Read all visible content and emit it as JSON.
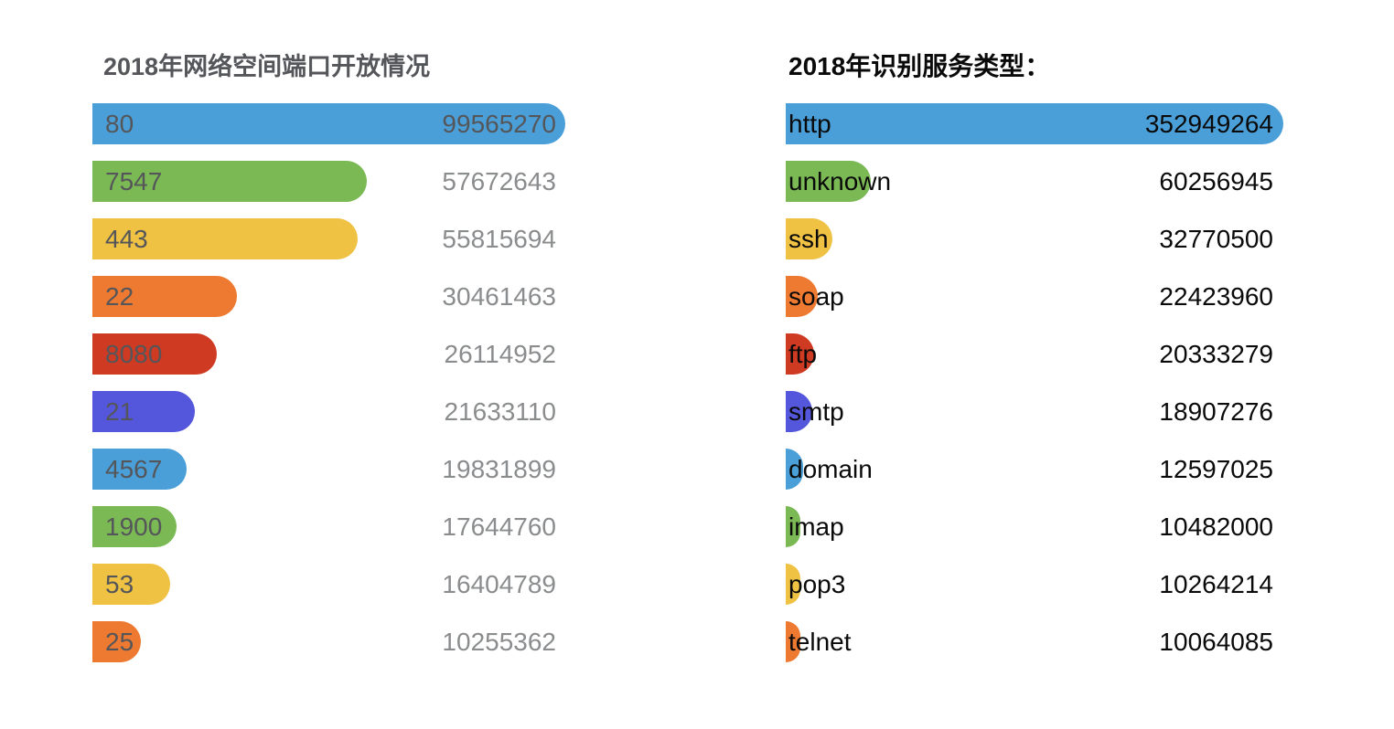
{
  "page": {
    "background": "#ffffff"
  },
  "palette": {
    "blue": "#4a9fd8",
    "green": "#7bb955",
    "yellow": "#efc244",
    "orange": "#ee7a31",
    "red": "#cf3a23",
    "indigo": "#5456db"
  },
  "chart_data": [
    {
      "type": "bar",
      "orientation": "horizontal",
      "title": "2018年网络空间端口开放情况",
      "title_color": "#55565a",
      "categories": [
        "80",
        "7547",
        "443",
        "22",
        "8080",
        "21",
        "4567",
        "1900",
        "53",
        "25"
      ],
      "values": [
        99565270,
        57672643,
        55815694,
        30461463,
        26114952,
        21633110,
        19831899,
        17644760,
        16404789,
        10255362
      ],
      "value_labels": [
        "99565270",
        "57672643",
        "55815694",
        "30461463",
        "26114952",
        "21633110",
        "19831899",
        "17644760",
        "16404789",
        "10255362"
      ],
      "bar_colors": [
        "#4a9fd8",
        "#7bb955",
        "#efc244",
        "#ee7a31",
        "#cf3a23",
        "#5456db",
        "#4a9fd8",
        "#7bb955",
        "#efc244",
        "#ee7a31"
      ],
      "label_color": "#55565a",
      "value_color": "#8a8c8e",
      "value_color_in_bar": "#55565a",
      "xlim": [
        0,
        99565270
      ],
      "grid": false,
      "legend": "none"
    },
    {
      "type": "bar",
      "orientation": "horizontal",
      "title": "2018年识别服务类型：",
      "title_color": "#0a0a0a",
      "categories": [
        "http",
        "unknown",
        "ssh",
        "soap",
        "ftp",
        "smtp",
        "domain",
        "imap",
        "pop3",
        "telnet"
      ],
      "values": [
        352949264,
        60256945,
        32770500,
        22423960,
        20333279,
        18907276,
        12597025,
        10482000,
        10264214,
        10064085
      ],
      "value_labels": [
        "352949264",
        "60256945",
        "32770500",
        "22423960",
        "20333279",
        "18907276",
        "12597025",
        "10482000",
        "10264214",
        "10064085"
      ],
      "bar_colors": [
        "#4a9fd8",
        "#7bb955",
        "#efc244",
        "#ee7a31",
        "#cf3a23",
        "#5456db",
        "#4a9fd8",
        "#7bb955",
        "#efc244",
        "#ee7a31"
      ],
      "label_color": "#0a0a0a",
      "value_color": "#0a0a0a",
      "value_color_in_bar": "#0a0a0a",
      "xlim": [
        0,
        352949264
      ],
      "grid": false,
      "legend": "none"
    }
  ]
}
